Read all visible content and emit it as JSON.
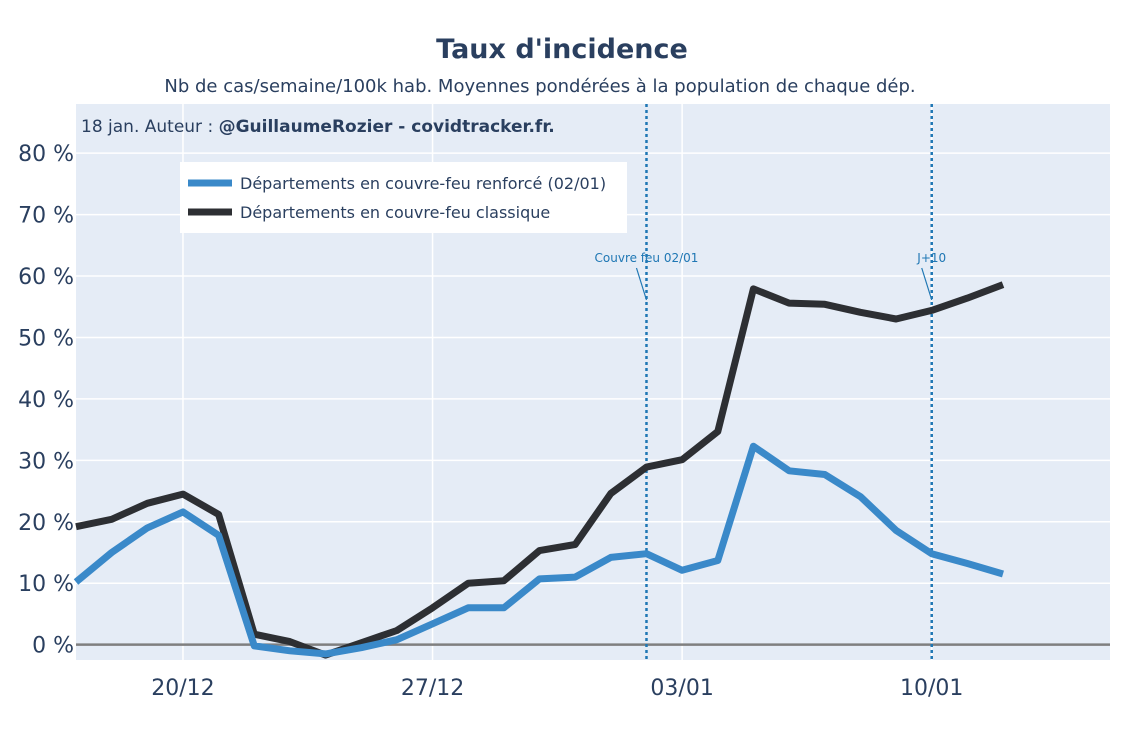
{
  "chart_data": {
    "type": "line",
    "title": "Taux d'incidence",
    "subtitle": "Nb de cas/semaine/100k hab. Moyennes pondérées à la population de chaque dép.",
    "source_prefix": "18 jan. Auteur : ",
    "source_author": "@GuillaumeRozier - covidtracker.fr.",
    "x_start_day": 0,
    "x_range": [
      0,
      29
    ],
    "xticks": [
      {
        "day": 3,
        "label": "20/12"
      },
      {
        "day": 10,
        "label": "27/12"
      },
      {
        "day": 17,
        "label": "03/01"
      },
      {
        "day": 24,
        "label": "10/01"
      }
    ],
    "ylim": [
      -2.5,
      88
    ],
    "yticks": [
      0,
      10,
      20,
      30,
      40,
      50,
      60,
      70,
      80
    ],
    "ytick_labels": [
      "0 %",
      "10 %",
      "20 %",
      "30 %",
      "40 %",
      "50 %",
      "60 %",
      "70 %",
      "80 %"
    ],
    "series": [
      {
        "name": "Départements en couvre-feu renforcé (02/01)",
        "color": "#3a89c9",
        "x": [
          0,
          1,
          2,
          3,
          4,
          5,
          6,
          7,
          8,
          9,
          10,
          11,
          12,
          13,
          14,
          15,
          16,
          17,
          18,
          19,
          20,
          21,
          22,
          23,
          24,
          25,
          26
        ],
        "values": [
          10.2,
          15.0,
          19.0,
          21.6,
          17.8,
          -0.2,
          -1.0,
          -1.5,
          -0.5,
          0.8,
          3.4,
          6.0,
          6.0,
          10.7,
          11.0,
          14.2,
          14.8,
          12.1,
          13.7,
          32.3,
          28.3,
          27.7,
          24.1,
          18.6,
          14.8,
          13.2,
          11.5
        ]
      },
      {
        "name": "Départements en couvre-feu classique",
        "color": "#2d2f33",
        "x": [
          0,
          1,
          2,
          3,
          4,
          5,
          6,
          7,
          8,
          9,
          10,
          11,
          12,
          13,
          14,
          15,
          16,
          17,
          18,
          19,
          20,
          21,
          22,
          23,
          24,
          25,
          26
        ],
        "values": [
          19.2,
          20.4,
          23.0,
          24.5,
          21.2,
          1.7,
          0.5,
          -1.7,
          0.3,
          2.3,
          6.0,
          10.0,
          10.4,
          15.3,
          16.3,
          24.6,
          28.9,
          30.1,
          34.7,
          57.9,
          55.6,
          55.4,
          54.1,
          53.0,
          54.4,
          56.4,
          58.6
        ]
      }
    ],
    "vlines": [
      {
        "day": 16,
        "label": "Couvre feu 02/01",
        "color": "#1f77b4"
      },
      {
        "day": 24,
        "label": "J+10",
        "color": "#1f77b4"
      }
    ],
    "legend_position": "top-left",
    "grid": true,
    "colors": {
      "plot_bg": "#e5ecf6",
      "grid": "#ffffff",
      "zero_line": "#7f7f7f",
      "text": "#2a3f5f"
    }
  }
}
